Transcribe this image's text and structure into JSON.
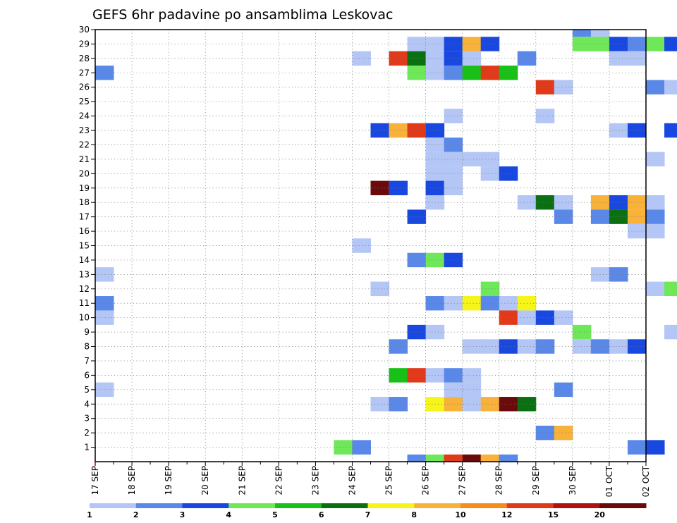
{
  "chart_data": {
    "type": "heatmap",
    "title": "GEFS 6hr padavine po ansamblima Leskovac",
    "xlabel": "",
    "ylabel": "",
    "x_ticks": [
      "17 SEP",
      "18 SEP",
      "19 SEP",
      "20 SEP",
      "21 SEP",
      "22 SEP",
      "23 SEP",
      "24 SEP",
      "25 SEP",
      "26 SEP",
      "27 SEP",
      "28 SEP",
      "29 SEP",
      "30 SEP",
      "01 OCT",
      "02 OCT"
    ],
    "y_ticks": [
      1,
      2,
      3,
      4,
      5,
      6,
      7,
      8,
      9,
      10,
      11,
      12,
      13,
      14,
      15,
      16,
      17,
      18,
      19,
      20,
      21,
      22,
      23,
      24,
      25,
      26,
      27,
      28,
      29,
      30
    ],
    "step": "6hr",
    "grid": true,
    "colorbar": {
      "labels": [
        "1",
        "2",
        "3",
        "4",
        "5",
        "6",
        "7",
        "8",
        "10",
        "12",
        "15",
        "20"
      ],
      "colors": [
        "#b3c6f5",
        "#5a88e8",
        "#1848e0",
        "#6ee858",
        "#18c018",
        "#0a7012",
        "#f5f51a",
        "#f8b23a",
        "#f58e18",
        "#e03a1a",
        "#b01212",
        "#6a0a0a"
      ]
    },
    "cells": [
      {
        "m": 30,
        "t": 26,
        "v": 2
      },
      {
        "m": 30,
        "t": 27,
        "v": 1
      },
      {
        "m": 29,
        "t": 17,
        "v": 1
      },
      {
        "m": 29,
        "t": 18,
        "v": 1
      },
      {
        "m": 29,
        "t": 19,
        "v": 3
      },
      {
        "m": 29,
        "t": 20,
        "v": 9
      },
      {
        "m": 29,
        "t": 21,
        "v": 3
      },
      {
        "m": 29,
        "t": 26,
        "v": 4
      },
      {
        "m": 29,
        "t": 27,
        "v": 4
      },
      {
        "m": 29,
        "t": 28,
        "v": 3
      },
      {
        "m": 29,
        "t": 29,
        "v": 2
      },
      {
        "m": 29,
        "t": 30,
        "v": 4
      },
      {
        "m": 29,
        "t": 31,
        "v": 3
      },
      {
        "m": 28,
        "t": 14,
        "v": 1
      },
      {
        "m": 28,
        "t": 16,
        "v": 13
      },
      {
        "m": 28,
        "t": 17,
        "v": 6
      },
      {
        "m": 28,
        "t": 18,
        "v": 1
      },
      {
        "m": 28,
        "t": 19,
        "v": 3
      },
      {
        "m": 28,
        "t": 20,
        "v": 1
      },
      {
        "m": 28,
        "t": 23,
        "v": 2
      },
      {
        "m": 28,
        "t": 28,
        "v": 1
      },
      {
        "m": 28,
        "t": 29,
        "v": 1
      },
      {
        "m": 27,
        "t": 0,
        "v": 2
      },
      {
        "m": 27,
        "t": 17,
        "v": 4
      },
      {
        "m": 27,
        "t": 18,
        "v": 1
      },
      {
        "m": 27,
        "t": 19,
        "v": 2
      },
      {
        "m": 27,
        "t": 20,
        "v": 5
      },
      {
        "m": 27,
        "t": 21,
        "v": 13
      },
      {
        "m": 27,
        "t": 22,
        "v": 5
      },
      {
        "m": 26,
        "t": 24,
        "v": 12
      },
      {
        "m": 26,
        "t": 25,
        "v": 1
      },
      {
        "m": 26,
        "t": 30,
        "v": 2
      },
      {
        "m": 26,
        "t": 31,
        "v": 1
      },
      {
        "m": 24,
        "t": 19,
        "v": 1
      },
      {
        "m": 24,
        "t": 24,
        "v": 1
      },
      {
        "m": 23,
        "t": 15,
        "v": 3
      },
      {
        "m": 23,
        "t": 16,
        "v": 9
      },
      {
        "m": 23,
        "t": 17,
        "v": 12
      },
      {
        "m": 23,
        "t": 18,
        "v": 3
      },
      {
        "m": 23,
        "t": 28,
        "v": 1
      },
      {
        "m": 23,
        "t": 29,
        "v": 3
      },
      {
        "m": 23,
        "t": 31,
        "v": 3
      },
      {
        "m": 22,
        "t": 18,
        "v": 1
      },
      {
        "m": 22,
        "t": 19,
        "v": 2
      },
      {
        "m": 21,
        "t": 18,
        "v": 1
      },
      {
        "m": 21,
        "t": 19,
        "v": 1
      },
      {
        "m": 21,
        "t": 20,
        "v": 1
      },
      {
        "m": 21,
        "t": 21,
        "v": 1
      },
      {
        "m": 21,
        "t": 30,
        "v": 1
      },
      {
        "m": 20,
        "t": 18,
        "v": 1
      },
      {
        "m": 20,
        "t": 19,
        "v": 1
      },
      {
        "m": 20,
        "t": 21,
        "v": 1
      },
      {
        "m": 20,
        "t": 22,
        "v": 3
      },
      {
        "m": 19,
        "t": 15,
        "v": 20
      },
      {
        "m": 19,
        "t": 16,
        "v": 3
      },
      {
        "m": 19,
        "t": 18,
        "v": 3
      },
      {
        "m": 19,
        "t": 19,
        "v": 1
      },
      {
        "m": 18,
        "t": 18,
        "v": 1
      },
      {
        "m": 18,
        "t": 23,
        "v": 1
      },
      {
        "m": 18,
        "t": 24,
        "v": 6
      },
      {
        "m": 18,
        "t": 25,
        "v": 1
      },
      {
        "m": 18,
        "t": 27,
        "v": 9
      },
      {
        "m": 18,
        "t": 28,
        "v": 3
      },
      {
        "m": 18,
        "t": 29,
        "v": 9
      },
      {
        "m": 18,
        "t": 30,
        "v": 1
      },
      {
        "m": 17,
        "t": 17,
        "v": 3
      },
      {
        "m": 17,
        "t": 25,
        "v": 2
      },
      {
        "m": 17,
        "t": 27,
        "v": 2
      },
      {
        "m": 17,
        "t": 28,
        "v": 6
      },
      {
        "m": 17,
        "t": 29,
        "v": 9
      },
      {
        "m": 17,
        "t": 30,
        "v": 2
      },
      {
        "m": 16,
        "t": 29,
        "v": 1
      },
      {
        "m": 16,
        "t": 30,
        "v": 1
      },
      {
        "m": 15,
        "t": 14,
        "v": 1
      },
      {
        "m": 14,
        "t": 17,
        "v": 2
      },
      {
        "m": 14,
        "t": 18,
        "v": 4
      },
      {
        "m": 14,
        "t": 19,
        "v": 3
      },
      {
        "m": 13,
        "t": 0,
        "v": 1
      },
      {
        "m": 13,
        "t": 27,
        "v": 1
      },
      {
        "m": 13,
        "t": 28,
        "v": 2
      },
      {
        "m": 12,
        "t": 15,
        "v": 1
      },
      {
        "m": 12,
        "t": 21,
        "v": 4
      },
      {
        "m": 12,
        "t": 30,
        "v": 1
      },
      {
        "m": 12,
        "t": 31,
        "v": 4
      },
      {
        "m": 11,
        "t": 0,
        "v": 2
      },
      {
        "m": 11,
        "t": 18,
        "v": 2
      },
      {
        "m": 11,
        "t": 19,
        "v": 1
      },
      {
        "m": 11,
        "t": 20,
        "v": 7
      },
      {
        "m": 11,
        "t": 21,
        "v": 2
      },
      {
        "m": 11,
        "t": 22,
        "v": 1
      },
      {
        "m": 11,
        "t": 23,
        "v": 7
      },
      {
        "m": 10,
        "t": 0,
        "v": 1
      },
      {
        "m": 10,
        "t": 22,
        "v": 13
      },
      {
        "m": 10,
        "t": 23,
        "v": 1
      },
      {
        "m": 10,
        "t": 24,
        "v": 3
      },
      {
        "m": 10,
        "t": 25,
        "v": 1
      },
      {
        "m": 9,
        "t": 17,
        "v": 3
      },
      {
        "m": 9,
        "t": 18,
        "v": 1
      },
      {
        "m": 9,
        "t": 26,
        "v": 4
      },
      {
        "m": 9,
        "t": 31,
        "v": 1
      },
      {
        "m": 8,
        "t": 16,
        "v": 2
      },
      {
        "m": 8,
        "t": 20,
        "v": 1
      },
      {
        "m": 8,
        "t": 21,
        "v": 1
      },
      {
        "m": 8,
        "t": 22,
        "v": 3
      },
      {
        "m": 8,
        "t": 23,
        "v": 1
      },
      {
        "m": 8,
        "t": 24,
        "v": 2
      },
      {
        "m": 8,
        "t": 26,
        "v": 1
      },
      {
        "m": 8,
        "t": 27,
        "v": 2
      },
      {
        "m": 8,
        "t": 28,
        "v": 1
      },
      {
        "m": 8,
        "t": 29,
        "v": 3
      },
      {
        "m": 6,
        "t": 16,
        "v": 5
      },
      {
        "m": 6,
        "t": 17,
        "v": 12
      },
      {
        "m": 6,
        "t": 18,
        "v": 1
      },
      {
        "m": 6,
        "t": 19,
        "v": 2
      },
      {
        "m": 6,
        "t": 20,
        "v": 1
      },
      {
        "m": 5,
        "t": 0,
        "v": 1
      },
      {
        "m": 5,
        "t": 19,
        "v": 1
      },
      {
        "m": 5,
        "t": 20,
        "v": 1
      },
      {
        "m": 5,
        "t": 25,
        "v": 2
      },
      {
        "m": 4,
        "t": 15,
        "v": 1
      },
      {
        "m": 4,
        "t": 16,
        "v": 2
      },
      {
        "m": 4,
        "t": 18,
        "v": 7
      },
      {
        "m": 4,
        "t": 19,
        "v": 8
      },
      {
        "m": 4,
        "t": 20,
        "v": 1
      },
      {
        "m": 4,
        "t": 21,
        "v": 9
      },
      {
        "m": 4,
        "t": 22,
        "v": 20
      },
      {
        "m": 4,
        "t": 23,
        "v": 6
      },
      {
        "m": 2,
        "t": 24,
        "v": 2
      },
      {
        "m": 2,
        "t": 25,
        "v": 8
      },
      {
        "m": 1,
        "t": 13,
        "v": 4
      },
      {
        "m": 1,
        "t": 14,
        "v": 2
      },
      {
        "m": 1,
        "t": 29,
        "v": 2
      },
      {
        "m": 1,
        "t": 30,
        "v": 3
      },
      {
        "m": 0,
        "t": 17,
        "v": 2
      },
      {
        "m": 0,
        "t": 18,
        "v": 4
      },
      {
        "m": 0,
        "t": 19,
        "v": 12
      },
      {
        "m": 0,
        "t": 20,
        "v": 20
      },
      {
        "m": 0,
        "t": 21,
        "v": 9
      },
      {
        "m": 0,
        "t": 22,
        "v": 2
      }
    ]
  }
}
